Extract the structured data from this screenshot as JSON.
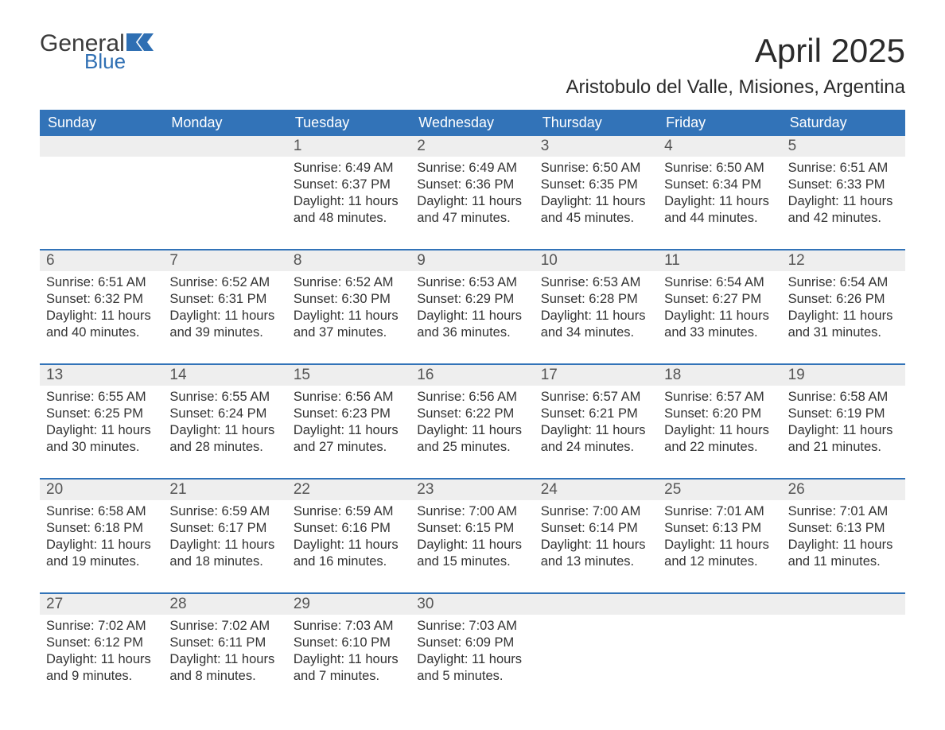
{
  "logo": {
    "word1": "General",
    "word2": "Blue",
    "flag_color": "#2f6fb3",
    "word1_color": "#3b3b3b"
  },
  "title": "April 2025",
  "subtitle": "Aristobulo del Valle, Misiones, Argentina",
  "colors": {
    "header_bg": "#3273b8",
    "header_text": "#ffffff",
    "band_bg": "#eeeeee",
    "week_border": "#3273b8",
    "body_text": "#333333",
    "daynum_text": "#555555",
    "page_bg": "#ffffff"
  },
  "days_of_week": [
    "Sunday",
    "Monday",
    "Tuesday",
    "Wednesday",
    "Thursday",
    "Friday",
    "Saturday"
  ],
  "weeks": [
    [
      {
        "n": "",
        "sunrise": "",
        "sunset": "",
        "daylight": ""
      },
      {
        "n": "",
        "sunrise": "",
        "sunset": "",
        "daylight": ""
      },
      {
        "n": "1",
        "sunrise": "6:49 AM",
        "sunset": "6:37 PM",
        "daylight": "11 hours and 48 minutes."
      },
      {
        "n": "2",
        "sunrise": "6:49 AM",
        "sunset": "6:36 PM",
        "daylight": "11 hours and 47 minutes."
      },
      {
        "n": "3",
        "sunrise": "6:50 AM",
        "sunset": "6:35 PM",
        "daylight": "11 hours and 45 minutes."
      },
      {
        "n": "4",
        "sunrise": "6:50 AM",
        "sunset": "6:34 PM",
        "daylight": "11 hours and 44 minutes."
      },
      {
        "n": "5",
        "sunrise": "6:51 AM",
        "sunset": "6:33 PM",
        "daylight": "11 hours and 42 minutes."
      }
    ],
    [
      {
        "n": "6",
        "sunrise": "6:51 AM",
        "sunset": "6:32 PM",
        "daylight": "11 hours and 40 minutes."
      },
      {
        "n": "7",
        "sunrise": "6:52 AM",
        "sunset": "6:31 PM",
        "daylight": "11 hours and 39 minutes."
      },
      {
        "n": "8",
        "sunrise": "6:52 AM",
        "sunset": "6:30 PM",
        "daylight": "11 hours and 37 minutes."
      },
      {
        "n": "9",
        "sunrise": "6:53 AM",
        "sunset": "6:29 PM",
        "daylight": "11 hours and 36 minutes."
      },
      {
        "n": "10",
        "sunrise": "6:53 AM",
        "sunset": "6:28 PM",
        "daylight": "11 hours and 34 minutes."
      },
      {
        "n": "11",
        "sunrise": "6:54 AM",
        "sunset": "6:27 PM",
        "daylight": "11 hours and 33 minutes."
      },
      {
        "n": "12",
        "sunrise": "6:54 AM",
        "sunset": "6:26 PM",
        "daylight": "11 hours and 31 minutes."
      }
    ],
    [
      {
        "n": "13",
        "sunrise": "6:55 AM",
        "sunset": "6:25 PM",
        "daylight": "11 hours and 30 minutes."
      },
      {
        "n": "14",
        "sunrise": "6:55 AM",
        "sunset": "6:24 PM",
        "daylight": "11 hours and 28 minutes."
      },
      {
        "n": "15",
        "sunrise": "6:56 AM",
        "sunset": "6:23 PM",
        "daylight": "11 hours and 27 minutes."
      },
      {
        "n": "16",
        "sunrise": "6:56 AM",
        "sunset": "6:22 PM",
        "daylight": "11 hours and 25 minutes."
      },
      {
        "n": "17",
        "sunrise": "6:57 AM",
        "sunset": "6:21 PM",
        "daylight": "11 hours and 24 minutes."
      },
      {
        "n": "18",
        "sunrise": "6:57 AM",
        "sunset": "6:20 PM",
        "daylight": "11 hours and 22 minutes."
      },
      {
        "n": "19",
        "sunrise": "6:58 AM",
        "sunset": "6:19 PM",
        "daylight": "11 hours and 21 minutes."
      }
    ],
    [
      {
        "n": "20",
        "sunrise": "6:58 AM",
        "sunset": "6:18 PM",
        "daylight": "11 hours and 19 minutes."
      },
      {
        "n": "21",
        "sunrise": "6:59 AM",
        "sunset": "6:17 PM",
        "daylight": "11 hours and 18 minutes."
      },
      {
        "n": "22",
        "sunrise": "6:59 AM",
        "sunset": "6:16 PM",
        "daylight": "11 hours and 16 minutes."
      },
      {
        "n": "23",
        "sunrise": "7:00 AM",
        "sunset": "6:15 PM",
        "daylight": "11 hours and 15 minutes."
      },
      {
        "n": "24",
        "sunrise": "7:00 AM",
        "sunset": "6:14 PM",
        "daylight": "11 hours and 13 minutes."
      },
      {
        "n": "25",
        "sunrise": "7:01 AM",
        "sunset": "6:13 PM",
        "daylight": "11 hours and 12 minutes."
      },
      {
        "n": "26",
        "sunrise": "7:01 AM",
        "sunset": "6:13 PM",
        "daylight": "11 hours and 11 minutes."
      }
    ],
    [
      {
        "n": "27",
        "sunrise": "7:02 AM",
        "sunset": "6:12 PM",
        "daylight": "11 hours and 9 minutes."
      },
      {
        "n": "28",
        "sunrise": "7:02 AM",
        "sunset": "6:11 PM",
        "daylight": "11 hours and 8 minutes."
      },
      {
        "n": "29",
        "sunrise": "7:03 AM",
        "sunset": "6:10 PM",
        "daylight": "11 hours and 7 minutes."
      },
      {
        "n": "30",
        "sunrise": "7:03 AM",
        "sunset": "6:09 PM",
        "daylight": "11 hours and 5 minutes."
      },
      {
        "n": "",
        "sunrise": "",
        "sunset": "",
        "daylight": ""
      },
      {
        "n": "",
        "sunrise": "",
        "sunset": "",
        "daylight": ""
      },
      {
        "n": "",
        "sunrise": "",
        "sunset": "",
        "daylight": ""
      }
    ]
  ],
  "labels": {
    "sunrise": "Sunrise: ",
    "sunset": "Sunset: ",
    "daylight": "Daylight: "
  }
}
